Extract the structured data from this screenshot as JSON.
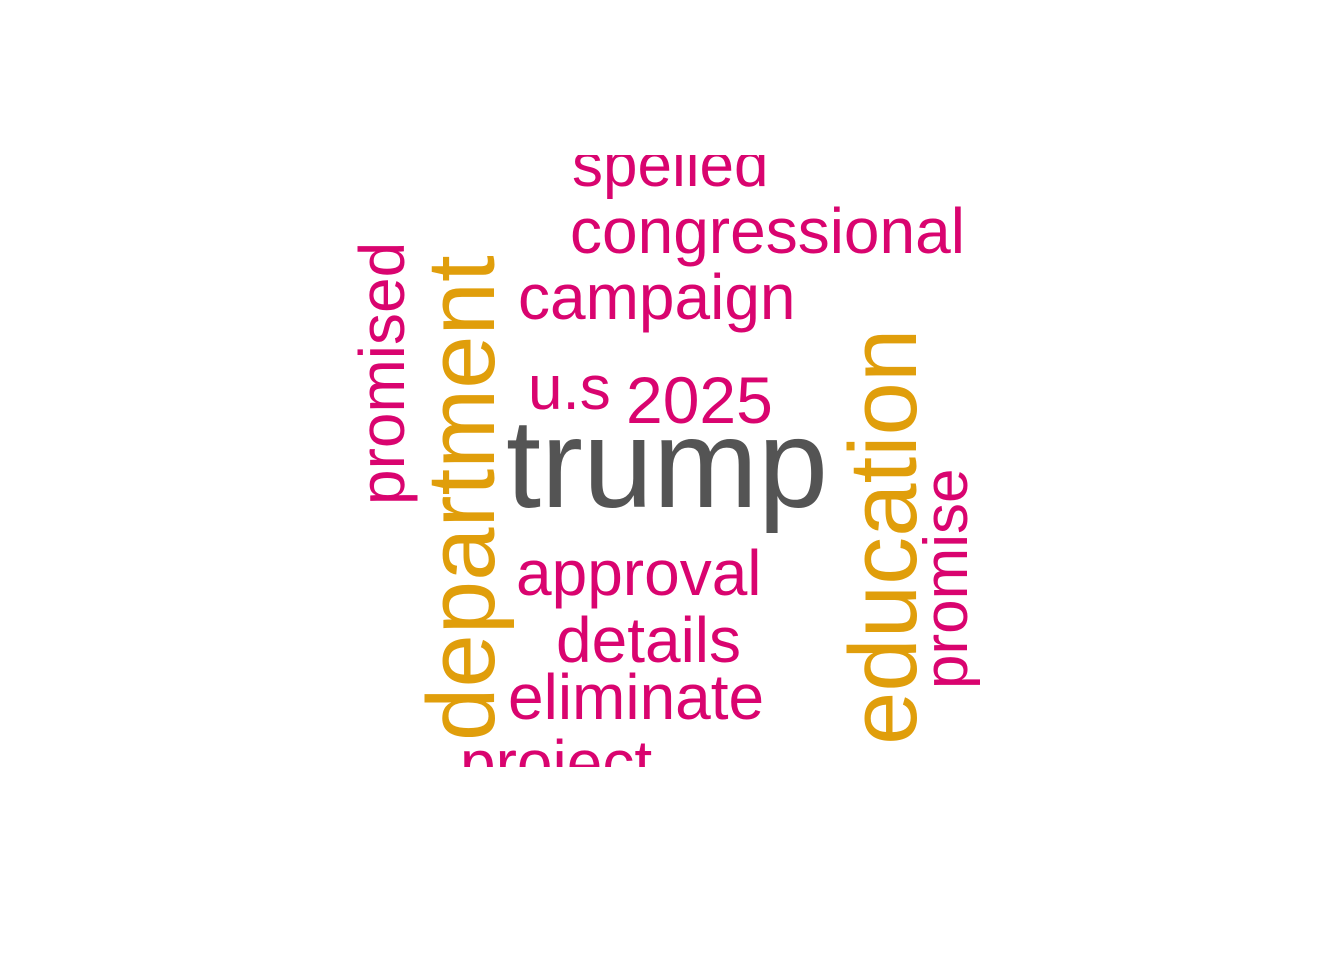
{
  "words": {
    "trump": "trump",
    "department": "department",
    "education": "education",
    "congressional": "congressional",
    "campaign": "campaign",
    "promised": "promised",
    "promise": "promise",
    "u_s": "u.s",
    "year_2025": "2025",
    "approval": "approval",
    "details": "details",
    "eliminate": "eliminate",
    "spelled": "spelled",
    "project": "project"
  },
  "colors": {
    "primary": "#545454",
    "secondary": "#e09e0b",
    "tertiary": "#d9046f",
    "background": "#ffffff"
  }
}
